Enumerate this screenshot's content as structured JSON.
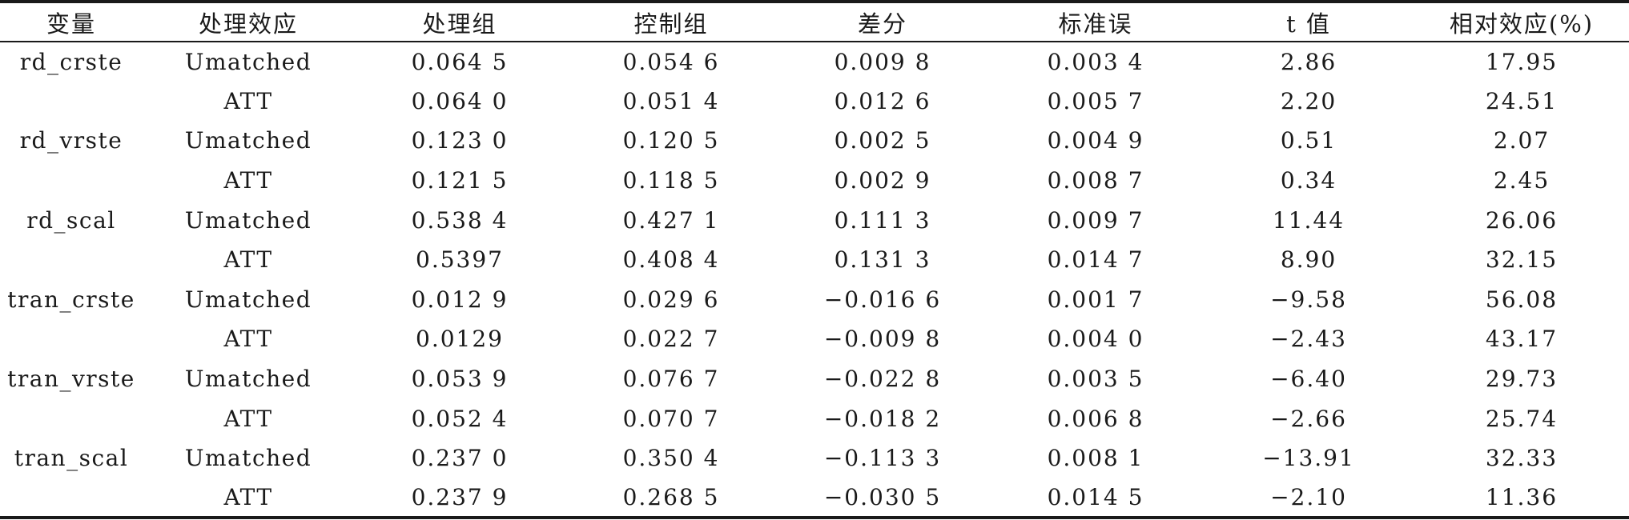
{
  "table": {
    "headers": [
      "变量",
      "处理效应",
      "处理组",
      "控制组",
      "差分",
      "标准误",
      "t 值",
      "相对效应(%)"
    ],
    "rows": [
      [
        "rd_crste",
        "Umatched",
        "0.064 5",
        "0.054 6",
        "0.009 8",
        "0.003 4",
        "2.86",
        "17.95"
      ],
      [
        "",
        "ATT",
        "0.064 0",
        "0.051 4",
        "0.012 6",
        "0.005 7",
        "2.20",
        "24.51"
      ],
      [
        "rd_vrste",
        "Umatched",
        "0.123 0",
        "0.120 5",
        "0.002 5",
        "0.004 9",
        "0.51",
        "2.07"
      ],
      [
        "",
        "ATT",
        "0.121 5",
        "0.118 5",
        "0.002 9",
        "0.008 7",
        "0.34",
        "2.45"
      ],
      [
        "rd_scal",
        "Umatched",
        "0.538 4",
        "0.427 1",
        "0.111 3",
        "0.009 7",
        "11.44",
        "26.06"
      ],
      [
        "",
        "ATT",
        "0.5397",
        "0.408 4",
        "0.131 3",
        "0.014 7",
        "8.90",
        "32.15"
      ],
      [
        "tran_crste",
        "Umatched",
        "0.012 9",
        "0.029 6",
        "−0.016 6",
        "0.001 7",
        "−9.58",
        "56.08"
      ],
      [
        "",
        "ATT",
        "0.0129",
        "0.022 7",
        "−0.009 8",
        "0.004 0",
        "−2.43",
        "43.17"
      ],
      [
        "tran_vrste",
        "Umatched",
        "0.053 9",
        "0.076 7",
        "−0.022 8",
        "0.003 5",
        "−6.40",
        "29.73"
      ],
      [
        "",
        "ATT",
        "0.052 4",
        "0.070 7",
        "−0.018 2",
        "0.006 8",
        "−2.66",
        "25.74"
      ],
      [
        "tran_scal",
        "Umatched",
        "0.237 0",
        "0.350 4",
        "−0.113 3",
        "0.008 1",
        "−13.91",
        "32.33"
      ],
      [
        "",
        "ATT",
        "0.237 9",
        "0.268 5",
        "−0.030 5",
        "0.014 5",
        "−2.10",
        "11.36"
      ]
    ]
  }
}
